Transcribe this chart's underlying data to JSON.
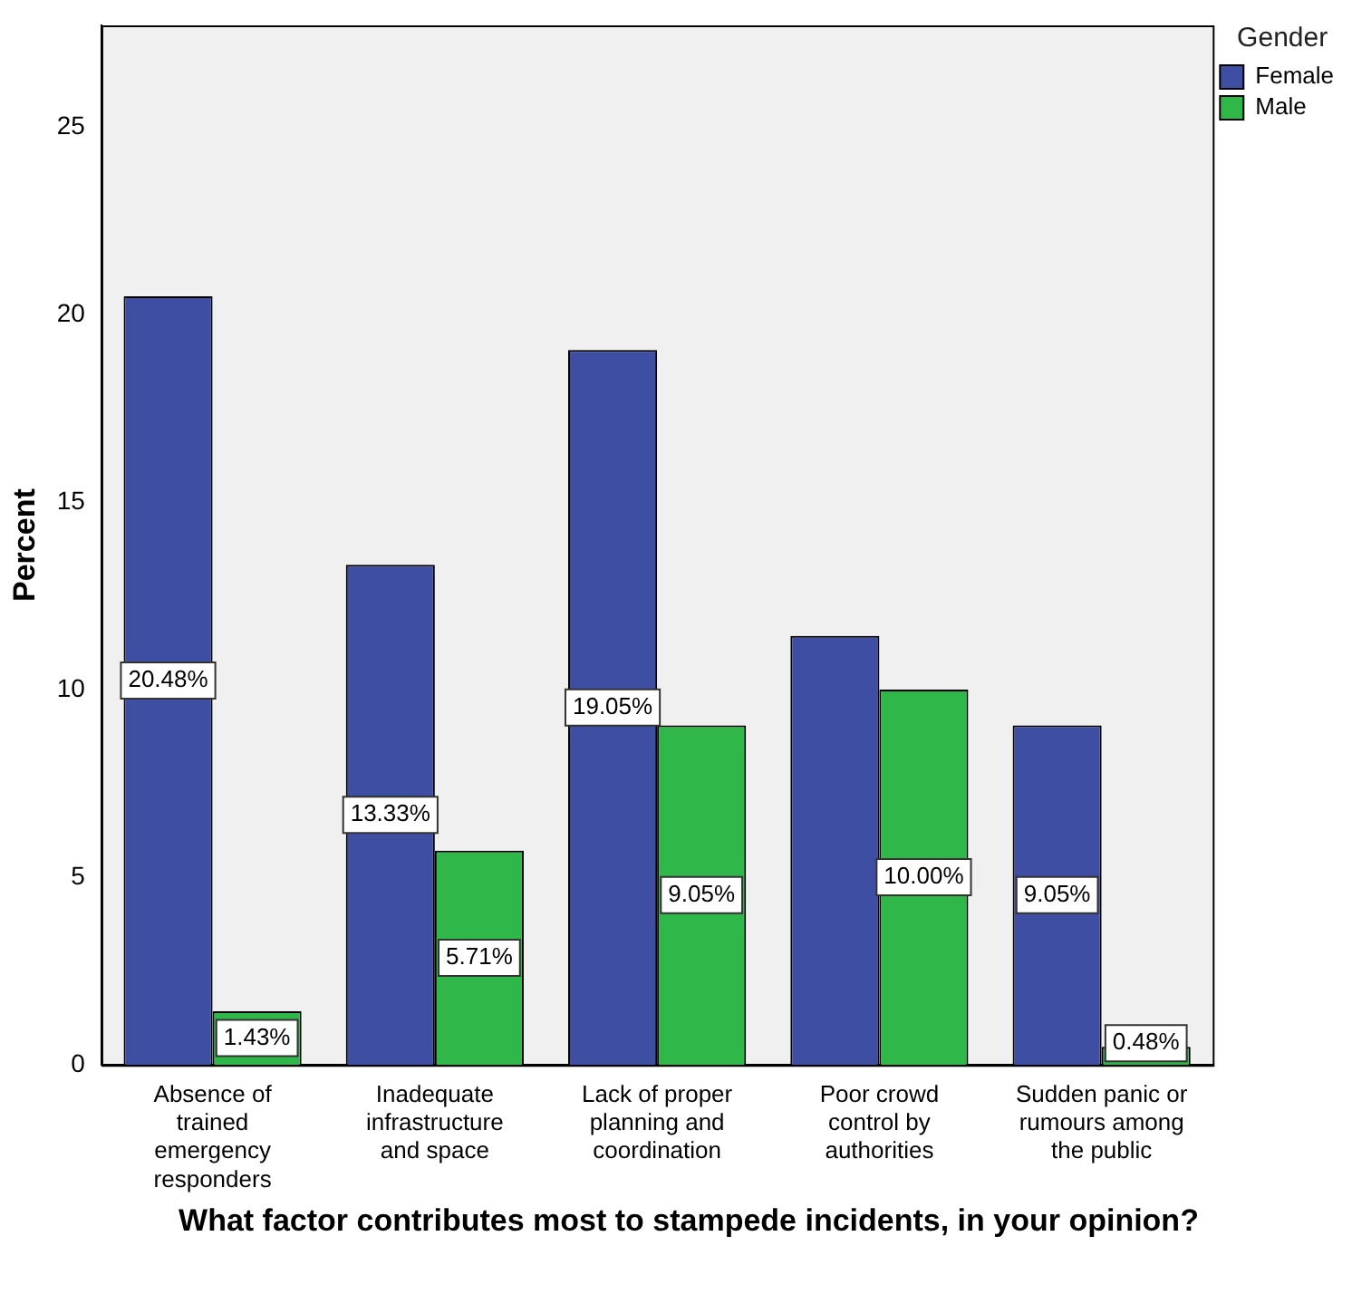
{
  "chart_data": {
    "type": "bar",
    "xlabel": "What factor contributes most to stampede incidents, in your opinion?",
    "ylabel": "Percent",
    "legend_title": "Gender",
    "categories": [
      "Absence of trained emergency responders",
      "Inadequate infrastructure and space",
      "Lack of proper planning and coordination",
      "Poor crowd control by authorities",
      "Sudden panic or rumours among the public"
    ],
    "series": [
      {
        "name": "Female",
        "color": "#3e4ea3",
        "values": [
          20.48,
          13.33,
          19.05,
          11.43,
          9.05
        ],
        "value_labels": [
          "20.48%",
          "13.33%",
          "19.05%",
          null,
          "9.05%"
        ]
      },
      {
        "name": "Male",
        "color": "#2fb74a",
        "values": [
          1.43,
          5.71,
          9.05,
          10.0,
          0.48
        ],
        "value_labels": [
          "1.43%",
          "5.71%",
          "9.05%",
          "10.00%",
          "0.48%"
        ]
      }
    ],
    "ylim": [
      0,
      27.7
    ],
    "yticks": [
      0,
      5,
      10,
      15,
      20,
      25
    ],
    "grid": false,
    "legend": "top right"
  }
}
